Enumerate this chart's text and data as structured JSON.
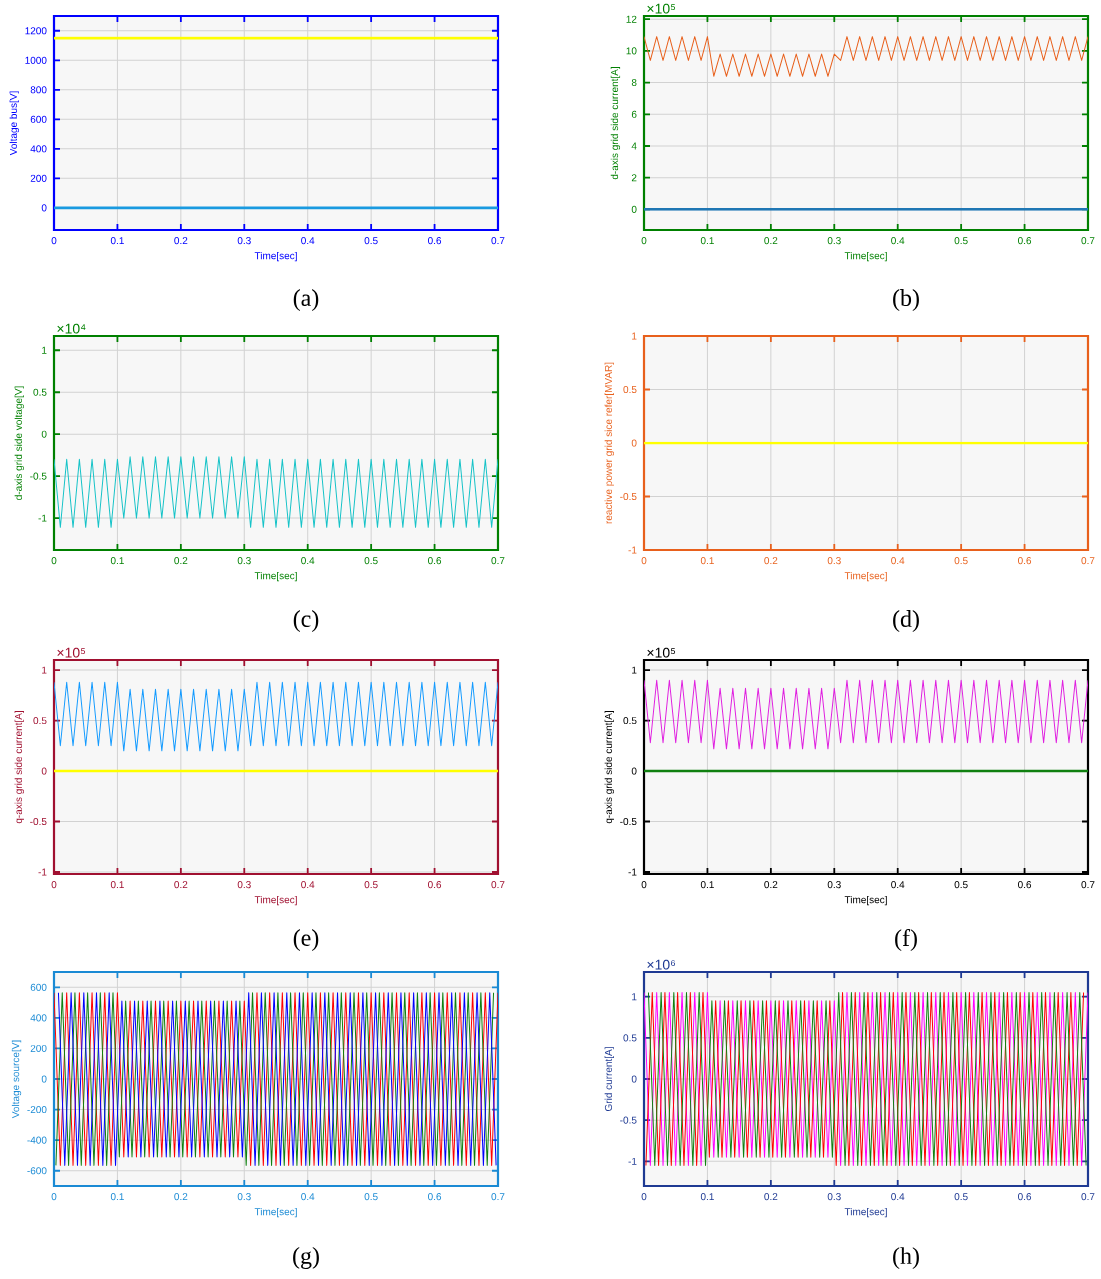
{
  "chart_data": [
    {
      "type": "line",
      "ylabel": "Voltage bus[V]",
      "xlabel": "Time[sec]",
      "xlim": [
        0,
        0.7
      ],
      "ylim": [
        -150,
        1300
      ],
      "xticks": [
        0,
        0.1,
        0.2,
        0.3,
        0.4,
        0.5,
        0.6,
        0.7
      ],
      "yticks": [
        0,
        200,
        400,
        600,
        800,
        1000,
        1200
      ],
      "grid": true,
      "annotations": [
        "(a)"
      ],
      "series": [
        {
          "color": "#ffff00",
          "x": [
            0,
            0.7
          ],
          "values": [
            1150,
            1150
          ]
        },
        {
          "color": "#1a9ae0",
          "x": [
            0,
            0.7
          ],
          "values": [
            0,
            0
          ]
        }
      ]
    },
    {
      "type": "line",
      "ylabel": "d-axis grid side current[A]",
      "xlabel": "Time[sec]",
      "xlim": [
        0,
        0.7
      ],
      "ylim": [
        -1.3,
        12.2
      ],
      "xticks": [
        0,
        0.1,
        0.2,
        0.3,
        0.4,
        0.5,
        0.6,
        0.7
      ],
      "yticks": [
        0,
        2,
        4,
        6,
        8,
        10,
        12
      ],
      "grid": true,
      "annotations": [
        "×10⁵",
        "(b)"
      ],
      "x": [
        0,
        0.01,
        0.02,
        0.03,
        0.04,
        0.05,
        0.06,
        0.07,
        0.08,
        0.09,
        0.1,
        0.11,
        0.12,
        0.13,
        0.14,
        0.15,
        0.16,
        0.17,
        0.18,
        0.19,
        0.2,
        0.21,
        0.22,
        0.23,
        0.24,
        0.25,
        0.26,
        0.27,
        0.28,
        0.29,
        0.3,
        0.31,
        0.32,
        0.33,
        0.34,
        0.35,
        0.36,
        0.37,
        0.38,
        0.39,
        0.4,
        0.41,
        0.42,
        0.43,
        0.44,
        0.45,
        0.46,
        0.47,
        0.48,
        0.49,
        0.5,
        0.51,
        0.52,
        0.53,
        0.54,
        0.55,
        0.56,
        0.57,
        0.58,
        0.59,
        0.6,
        0.61,
        0.62,
        0.63,
        0.64,
        0.65,
        0.66,
        0.67,
        0.68,
        0.69,
        0.7
      ],
      "series": [
        {
          "color": "#e8601c",
          "values": [
            10.9,
            9.4,
            10.9,
            9.4,
            10.9,
            9.4,
            10.9,
            9.4,
            10.9,
            9.4,
            10.9,
            8.4,
            9.8,
            8.4,
            9.8,
            8.4,
            9.8,
            8.4,
            9.8,
            8.4,
            9.8,
            8.4,
            9.8,
            8.4,
            9.8,
            8.4,
            9.8,
            8.4,
            9.8,
            8.4,
            9.8,
            9.4,
            10.9,
            9.4,
            10.9,
            9.4,
            10.9,
            9.4,
            10.9,
            9.4,
            10.9,
            9.4,
            10.9,
            9.4,
            10.9,
            9.4,
            10.9,
            9.4,
            10.9,
            9.4,
            10.9,
            9.4,
            10.9,
            9.4,
            10.9,
            9.4,
            10.9,
            9.4,
            10.9,
            9.4,
            10.9,
            9.4,
            10.9,
            9.4,
            10.9,
            9.4,
            10.9,
            9.4,
            10.9,
            9.4,
            10.9
          ]
        },
        {
          "color": "#1f77b4",
          "x": [
            0,
            0.7
          ],
          "values": [
            0,
            0
          ]
        }
      ]
    },
    {
      "type": "line",
      "ylabel": "d-axis grid side voltage[V]",
      "xlabel": "Time[sec]",
      "xlim": [
        0,
        0.7
      ],
      "ylim": [
        -1.38,
        1.17
      ],
      "xticks": [
        0,
        0.1,
        0.2,
        0.3,
        0.4,
        0.5,
        0.6,
        0.7
      ],
      "yticks": [
        -1,
        -0.5,
        0,
        0.5,
        1
      ],
      "grid": true,
      "annotations": [
        "×10⁴",
        "(c)"
      ],
      "x": [
        0,
        0.01,
        0.02,
        0.03,
        0.04,
        0.05,
        0.06,
        0.07,
        0.08,
        0.09,
        0.1,
        0.11,
        0.12,
        0.13,
        0.14,
        0.15,
        0.16,
        0.17,
        0.18,
        0.19,
        0.2,
        0.21,
        0.22,
        0.23,
        0.24,
        0.25,
        0.26,
        0.27,
        0.28,
        0.29,
        0.3,
        0.31,
        0.32,
        0.33,
        0.34,
        0.35,
        0.36,
        0.37,
        0.38,
        0.39,
        0.4,
        0.41,
        0.42,
        0.43,
        0.44,
        0.45,
        0.46,
        0.47,
        0.48,
        0.49,
        0.5,
        0.51,
        0.52,
        0.53,
        0.54,
        0.55,
        0.56,
        0.57,
        0.58,
        0.59,
        0.6,
        0.61,
        0.62,
        0.63,
        0.64,
        0.65,
        0.66,
        0.67,
        0.68,
        0.69,
        0.7
      ],
      "series": [
        {
          "color": "#17c3c8",
          "values": [
            -0.3,
            -1.11,
            -0.3,
            -1.11,
            -0.3,
            -1.11,
            -0.3,
            -1.11,
            -0.3,
            -1.11,
            -0.3,
            -1.0,
            -0.27,
            -1.0,
            -0.27,
            -1.0,
            -0.27,
            -1.0,
            -0.27,
            -1.0,
            -0.27,
            -1.0,
            -0.27,
            -1.0,
            -0.27,
            -1.0,
            -0.27,
            -1.0,
            -0.27,
            -1.0,
            -0.27,
            -1.11,
            -0.3,
            -1.11,
            -0.3,
            -1.11,
            -0.3,
            -1.11,
            -0.3,
            -1.11,
            -0.3,
            -1.11,
            -0.3,
            -1.11,
            -0.3,
            -1.11,
            -0.3,
            -1.11,
            -0.3,
            -1.11,
            -0.3,
            -1.11,
            -0.3,
            -1.11,
            -0.3,
            -1.11,
            -0.3,
            -1.11,
            -0.3,
            -1.11,
            -0.3,
            -1.11,
            -0.3,
            -1.11,
            -0.3,
            -1.11,
            -0.3,
            -1.11,
            -0.3,
            -1.11,
            -0.3
          ]
        }
      ]
    },
    {
      "type": "line",
      "ylabel": "reactive power grid sice refer[MVAR]",
      "xlabel": "Time[sec]",
      "xlim": [
        0,
        0.7
      ],
      "ylim": [
        -1,
        1
      ],
      "xticks": [
        0,
        0.1,
        0.2,
        0.3,
        0.4,
        0.5,
        0.6,
        0.7
      ],
      "yticks": [
        -1,
        -0.5,
        0,
        0.5,
        1
      ],
      "grid": true,
      "annotations": [
        "(d)"
      ],
      "series": [
        {
          "color": "#ffff00",
          "x": [
            0,
            0.7
          ],
          "values": [
            0,
            0
          ]
        }
      ]
    },
    {
      "type": "line",
      "ylabel": "q-axis grid side current[A]",
      "xlabel": "Time[sec]",
      "xlim": [
        0,
        0.7
      ],
      "ylim": [
        -1.02,
        1.1
      ],
      "xticks": [
        0,
        0.1,
        0.2,
        0.3,
        0.4,
        0.5,
        0.6,
        0.7
      ],
      "yticks": [
        -1,
        -0.5,
        0,
        0.5,
        1
      ],
      "grid": true,
      "annotations": [
        "×10⁵",
        "(e)"
      ],
      "x": [
        0,
        0.01,
        0.02,
        0.03,
        0.04,
        0.05,
        0.06,
        0.07,
        0.08,
        0.09,
        0.1,
        0.11,
        0.12,
        0.13,
        0.14,
        0.15,
        0.16,
        0.17,
        0.18,
        0.19,
        0.2,
        0.21,
        0.22,
        0.23,
        0.24,
        0.25,
        0.26,
        0.27,
        0.28,
        0.29,
        0.3,
        0.31,
        0.32,
        0.33,
        0.34,
        0.35,
        0.36,
        0.37,
        0.38,
        0.39,
        0.4,
        0.41,
        0.42,
        0.43,
        0.44,
        0.45,
        0.46,
        0.47,
        0.48,
        0.49,
        0.5,
        0.51,
        0.52,
        0.53,
        0.54,
        0.55,
        0.56,
        0.57,
        0.58,
        0.59,
        0.6,
        0.61,
        0.62,
        0.63,
        0.64,
        0.65,
        0.66,
        0.67,
        0.68,
        0.69,
        0.7
      ],
      "series": [
        {
          "color": "#149bff",
          "values": [
            0.88,
            0.25,
            0.88,
            0.25,
            0.88,
            0.25,
            0.88,
            0.25,
            0.88,
            0.25,
            0.88,
            0.2,
            0.81,
            0.2,
            0.81,
            0.2,
            0.81,
            0.2,
            0.81,
            0.2,
            0.81,
            0.2,
            0.81,
            0.2,
            0.81,
            0.2,
            0.81,
            0.2,
            0.81,
            0.2,
            0.81,
            0.25,
            0.88,
            0.25,
            0.88,
            0.25,
            0.88,
            0.25,
            0.88,
            0.25,
            0.88,
            0.25,
            0.88,
            0.25,
            0.88,
            0.25,
            0.88,
            0.25,
            0.88,
            0.25,
            0.88,
            0.25,
            0.88,
            0.25,
            0.88,
            0.25,
            0.88,
            0.25,
            0.88,
            0.25,
            0.88,
            0.25,
            0.88,
            0.25,
            0.88,
            0.25,
            0.88,
            0.25,
            0.88,
            0.25,
            0.88
          ]
        },
        {
          "color": "#ffff00",
          "x": [
            0,
            0.7
          ],
          "values": [
            0,
            0
          ]
        }
      ]
    },
    {
      "type": "line",
      "ylabel": "q-axis grid side current[A]",
      "xlabel": "Time[sec]",
      "xlim": [
        0,
        0.7
      ],
      "ylim": [
        -1.02,
        1.1
      ],
      "xticks": [
        0,
        0.1,
        0.2,
        0.3,
        0.4,
        0.5,
        0.6,
        0.7
      ],
      "yticks": [
        -1,
        -0.5,
        0,
        0.5,
        1
      ],
      "grid": true,
      "annotations": [
        "×10⁵",
        "(f)"
      ],
      "x": [
        0,
        0.01,
        0.02,
        0.03,
        0.04,
        0.05,
        0.06,
        0.07,
        0.08,
        0.09,
        0.1,
        0.11,
        0.12,
        0.13,
        0.14,
        0.15,
        0.16,
        0.17,
        0.18,
        0.19,
        0.2,
        0.21,
        0.22,
        0.23,
        0.24,
        0.25,
        0.26,
        0.27,
        0.28,
        0.29,
        0.3,
        0.31,
        0.32,
        0.33,
        0.34,
        0.35,
        0.36,
        0.37,
        0.38,
        0.39,
        0.4,
        0.41,
        0.42,
        0.43,
        0.44,
        0.45,
        0.46,
        0.47,
        0.48,
        0.49,
        0.5,
        0.51,
        0.52,
        0.53,
        0.54,
        0.55,
        0.56,
        0.57,
        0.58,
        0.59,
        0.6,
        0.61,
        0.62,
        0.63,
        0.64,
        0.65,
        0.66,
        0.67,
        0.68,
        0.69,
        0.7
      ],
      "series": [
        {
          "color": "#e020e0",
          "values": [
            0.9,
            0.28,
            0.9,
            0.28,
            0.9,
            0.28,
            0.9,
            0.28,
            0.9,
            0.28,
            0.9,
            0.22,
            0.82,
            0.22,
            0.82,
            0.22,
            0.82,
            0.22,
            0.82,
            0.22,
            0.82,
            0.22,
            0.82,
            0.22,
            0.82,
            0.22,
            0.82,
            0.22,
            0.82,
            0.22,
            0.82,
            0.28,
            0.9,
            0.28,
            0.9,
            0.28,
            0.9,
            0.28,
            0.9,
            0.28,
            0.9,
            0.28,
            0.9,
            0.28,
            0.9,
            0.28,
            0.9,
            0.28,
            0.9,
            0.28,
            0.9,
            0.28,
            0.9,
            0.28,
            0.9,
            0.28,
            0.9,
            0.28,
            0.9,
            0.28,
            0.9,
            0.28,
            0.9,
            0.28,
            0.9,
            0.28,
            0.9,
            0.28,
            0.9,
            0.28,
            0.9
          ]
        },
        {
          "color": "#108010",
          "x": [
            0,
            0.7
          ],
          "values": [
            0,
            0
          ]
        }
      ]
    },
    {
      "type": "line",
      "ylabel": "Voltage source[V]",
      "xlabel": "Time[sec]",
      "xlim": [
        0,
        0.7
      ],
      "ylim": [
        -700,
        700
      ],
      "xticks": [
        0,
        0.1,
        0.2,
        0.3,
        0.4,
        0.5,
        0.6,
        0.7
      ],
      "yticks": [
        -600,
        -400,
        -200,
        0,
        200,
        400,
        600
      ],
      "grid": true,
      "annotations": [
        "(g)"
      ],
      "x": [
        0,
        0.01,
        0.02,
        0.03,
        0.04,
        0.05,
        0.06,
        0.07,
        0.08,
        0.09,
        0.1,
        0.11,
        0.12,
        0.13,
        0.14,
        0.15,
        0.16,
        0.17,
        0.18,
        0.19,
        0.2,
        0.21,
        0.22,
        0.23,
        0.24,
        0.25,
        0.26,
        0.27,
        0.28,
        0.29,
        0.3,
        0.31,
        0.32,
        0.33,
        0.34,
        0.35,
        0.36,
        0.37,
        0.38,
        0.39,
        0.4,
        0.41,
        0.42,
        0.43,
        0.44,
        0.45,
        0.46,
        0.47,
        0.48,
        0.49,
        0.5,
        0.51,
        0.52,
        0.53,
        0.54,
        0.55,
        0.56,
        0.57,
        0.58,
        0.59,
        0.6,
        0.61,
        0.62,
        0.63,
        0.64,
        0.65,
        0.66,
        0.67,
        0.68,
        0.69,
        0.7
      ],
      "series": [
        {
          "color": "#ff0000",
          "values": [
            565,
            -565,
            565,
            -565,
            565,
            -565,
            565,
            -565,
            565,
            -565,
            565,
            -510,
            510,
            -510,
            510,
            -510,
            510,
            -510,
            510,
            -510,
            510,
            -510,
            510,
            -510,
            510,
            -510,
            510,
            -510,
            510,
            -510,
            510,
            -565,
            565,
            -565,
            565,
            -565,
            565,
            -565,
            565,
            -565,
            565,
            -565,
            565,
            -565,
            565,
            -565,
            565,
            -565,
            565,
            -565,
            565,
            -565,
            565,
            -565,
            565,
            -565,
            565,
            -565,
            565,
            -565,
            565,
            -565,
            565,
            -565,
            565,
            -565,
            565,
            -565,
            565,
            -565,
            565
          ]
        },
        {
          "color": "#108010",
          "x": [
            0.003,
            0.013,
            0.023,
            0.033,
            0.043,
            0.053,
            0.063,
            0.073,
            0.083,
            0.093,
            0.103,
            0.113,
            0.123,
            0.133,
            0.143,
            0.153,
            0.163,
            0.173,
            0.183,
            0.193,
            0.203,
            0.213,
            0.223,
            0.233,
            0.243,
            0.253,
            0.263,
            0.273,
            0.283,
            0.293,
            0.303,
            0.313,
            0.323,
            0.333,
            0.343,
            0.353,
            0.363,
            0.373,
            0.383,
            0.393,
            0.403,
            0.413,
            0.423,
            0.433,
            0.443,
            0.453,
            0.463,
            0.473,
            0.483,
            0.493,
            0.503,
            0.513,
            0.523,
            0.533,
            0.543,
            0.553,
            0.563,
            0.573,
            0.583,
            0.593,
            0.603,
            0.613,
            0.623,
            0.633,
            0.643,
            0.653,
            0.663,
            0.673,
            0.683,
            0.693
          ],
          "values": [
            -565,
            565,
            -565,
            565,
            -565,
            565,
            -565,
            565,
            -565,
            565,
            -510,
            510,
            -510,
            510,
            -510,
            510,
            -510,
            510,
            -510,
            510,
            -510,
            510,
            -510,
            510,
            -510,
            510,
            -510,
            510,
            -510,
            510,
            -565,
            565,
            -565,
            565,
            -565,
            565,
            -565,
            565,
            -565,
            565,
            -565,
            565,
            -565,
            565,
            -565,
            565,
            -565,
            565,
            -565,
            565,
            -565,
            565,
            -565,
            565,
            -565,
            565,
            -565,
            565,
            -565,
            565,
            -565,
            565,
            -565,
            565,
            -565,
            565,
            -565,
            565,
            -565,
            565
          ]
        },
        {
          "color": "#0000ff",
          "x": [
            0.007,
            0.017,
            0.027,
            0.037,
            0.047,
            0.057,
            0.067,
            0.077,
            0.087,
            0.097,
            0.107,
            0.117,
            0.127,
            0.137,
            0.147,
            0.157,
            0.167,
            0.177,
            0.187,
            0.197,
            0.207,
            0.217,
            0.227,
            0.237,
            0.247,
            0.257,
            0.267,
            0.277,
            0.287,
            0.297,
            0.307,
            0.317,
            0.327,
            0.337,
            0.347,
            0.357,
            0.367,
            0.377,
            0.387,
            0.397,
            0.407,
            0.417,
            0.427,
            0.437,
            0.447,
            0.457,
            0.467,
            0.477,
            0.487,
            0.497,
            0.507,
            0.517,
            0.527,
            0.537,
            0.547,
            0.557,
            0.567,
            0.577,
            0.587,
            0.597,
            0.607,
            0.617,
            0.627,
            0.637,
            0.647,
            0.657,
            0.667,
            0.677,
            0.687,
            0.697
          ],
          "values": [
            565,
            -565,
            565,
            -565,
            565,
            -565,
            565,
            -565,
            565,
            -565,
            510,
            -510,
            510,
            -510,
            510,
            -510,
            510,
            -510,
            510,
            -510,
            510,
            -510,
            510,
            -510,
            510,
            -510,
            510,
            -510,
            510,
            -510,
            565,
            -565,
            565,
            -565,
            565,
            -565,
            565,
            -565,
            565,
            -565,
            565,
            -565,
            565,
            -565,
            565,
            -565,
            565,
            -565,
            565,
            -565,
            565,
            -565,
            565,
            -565,
            565,
            -565,
            565,
            -565,
            565,
            -565,
            565,
            -565,
            565,
            -565,
            565,
            -565,
            565,
            -565,
            565,
            -565
          ]
        }
      ]
    },
    {
      "type": "line",
      "ylabel": "Grid current[A]",
      "xlabel": "Time[sec]",
      "xlim": [
        0,
        0.7
      ],
      "ylim": [
        -1.3,
        1.3
      ],
      "xticks": [
        0,
        0.1,
        0.2,
        0.3,
        0.4,
        0.5,
        0.6,
        0.7
      ],
      "yticks": [
        -1,
        -0.5,
        0,
        0.5,
        1
      ],
      "grid": true,
      "annotations": [
        "×10⁶",
        "(h)"
      ],
      "x": [
        0,
        0.01,
        0.02,
        0.03,
        0.04,
        0.05,
        0.06,
        0.07,
        0.08,
        0.09,
        0.1,
        0.11,
        0.12,
        0.13,
        0.14,
        0.15,
        0.16,
        0.17,
        0.18,
        0.19,
        0.2,
        0.21,
        0.22,
        0.23,
        0.24,
        0.25,
        0.26,
        0.27,
        0.28,
        0.29,
        0.3,
        0.31,
        0.32,
        0.33,
        0.34,
        0.35,
        0.36,
        0.37,
        0.38,
        0.39,
        0.4,
        0.41,
        0.42,
        0.43,
        0.44,
        0.45,
        0.46,
        0.47,
        0.48,
        0.49,
        0.5,
        0.51,
        0.52,
        0.53,
        0.54,
        0.55,
        0.56,
        0.57,
        0.58,
        0.59,
        0.6,
        0.61,
        0.62,
        0.63,
        0.64,
        0.65,
        0.66,
        0.67,
        0.68,
        0.69,
        0.7
      ],
      "series": [
        {
          "color": "#ff00ff",
          "values": [
            1.05,
            -1.05,
            1.05,
            -1.05,
            1.05,
            -1.05,
            1.05,
            -1.05,
            1.05,
            -1.05,
            1.05,
            -0.95,
            0.95,
            -0.95,
            0.95,
            -0.95,
            0.95,
            -0.95,
            0.95,
            -0.95,
            0.95,
            -0.95,
            0.95,
            -0.95,
            0.95,
            -0.95,
            0.95,
            -0.95,
            0.95,
            -0.95,
            0.95,
            -1.05,
            1.05,
            -1.05,
            1.05,
            -1.05,
            1.05,
            -1.05,
            1.05,
            -1.05,
            1.05,
            -1.05,
            1.05,
            -1.05,
            1.05,
            -1.05,
            1.05,
            -1.05,
            1.05,
            -1.05,
            1.05,
            -1.05,
            1.05,
            -1.05,
            1.05,
            -1.05,
            1.05,
            -1.05,
            1.05,
            -1.05,
            1.05,
            -1.05,
            1.05,
            -1.05,
            1.05,
            -1.05,
            1.05,
            -1.05,
            1.05,
            -1.05,
            1.05
          ]
        },
        {
          "color": "#ff0000",
          "x": [
            0.003,
            0.013,
            0.023,
            0.033,
            0.043,
            0.053,
            0.063,
            0.073,
            0.083,
            0.093,
            0.103,
            0.113,
            0.123,
            0.133,
            0.143,
            0.153,
            0.163,
            0.173,
            0.183,
            0.193,
            0.203,
            0.213,
            0.223,
            0.233,
            0.243,
            0.253,
            0.263,
            0.273,
            0.283,
            0.293,
            0.303,
            0.313,
            0.323,
            0.333,
            0.343,
            0.353,
            0.363,
            0.373,
            0.383,
            0.393,
            0.403,
            0.413,
            0.423,
            0.433,
            0.443,
            0.453,
            0.463,
            0.473,
            0.483,
            0.493,
            0.503,
            0.513,
            0.523,
            0.533,
            0.543,
            0.553,
            0.563,
            0.573,
            0.583,
            0.593,
            0.603,
            0.613,
            0.623,
            0.633,
            0.643,
            0.653,
            0.663,
            0.673,
            0.683,
            0.693
          ],
          "values": [
            -1.05,
            1.05,
            -1.05,
            1.05,
            -1.05,
            1.05,
            -1.05,
            1.05,
            -1.05,
            1.05,
            -0.95,
            0.95,
            -0.95,
            0.95,
            -0.95,
            0.95,
            -0.95,
            0.95,
            -0.95,
            0.95,
            -0.95,
            0.95,
            -0.95,
            0.95,
            -0.95,
            0.95,
            -0.95,
            0.95,
            -0.95,
            0.95,
            -1.05,
            1.05,
            -1.05,
            1.05,
            -1.05,
            1.05,
            -1.05,
            1.05,
            -1.05,
            1.05,
            -1.05,
            1.05,
            -1.05,
            1.05,
            -1.05,
            1.05,
            -1.05,
            1.05,
            -1.05,
            1.05,
            -1.05,
            1.05,
            -1.05,
            1.05,
            -1.05,
            1.05,
            -1.05,
            1.05,
            -1.05,
            1.05,
            -1.05,
            1.05,
            -1.05,
            1.05,
            -1.05,
            1.05,
            -1.05,
            1.05,
            -1.05,
            1.05
          ]
        },
        {
          "color": "#108010",
          "x": [
            0.007,
            0.017,
            0.027,
            0.037,
            0.047,
            0.057,
            0.067,
            0.077,
            0.087,
            0.097,
            0.107,
            0.117,
            0.127,
            0.137,
            0.147,
            0.157,
            0.167,
            0.177,
            0.187,
            0.197,
            0.207,
            0.217,
            0.227,
            0.237,
            0.247,
            0.257,
            0.267,
            0.277,
            0.287,
            0.297,
            0.307,
            0.317,
            0.327,
            0.337,
            0.347,
            0.357,
            0.367,
            0.377,
            0.387,
            0.397,
            0.407,
            0.417,
            0.427,
            0.437,
            0.447,
            0.457,
            0.467,
            0.477,
            0.487,
            0.497,
            0.507,
            0.517,
            0.527,
            0.537,
            0.547,
            0.557,
            0.567,
            0.577,
            0.587,
            0.597,
            0.607,
            0.617,
            0.627,
            0.637,
            0.647,
            0.657,
            0.667,
            0.677,
            0.687,
            0.697
          ],
          "values": [
            1.05,
            -1.05,
            1.05,
            -1.05,
            1.05,
            -1.05,
            1.05,
            -1.05,
            1.05,
            -1.05,
            0.95,
            -0.95,
            0.95,
            -0.95,
            0.95,
            -0.95,
            0.95,
            -0.95,
            0.95,
            -0.95,
            0.95,
            -0.95,
            0.95,
            -0.95,
            0.95,
            -0.95,
            0.95,
            -0.95,
            0.95,
            -0.95,
            1.05,
            -1.05,
            1.05,
            -1.05,
            1.05,
            -1.05,
            1.05,
            -1.05,
            1.05,
            -1.05,
            1.05,
            -1.05,
            1.05,
            -1.05,
            1.05,
            -1.05,
            1.05,
            -1.05,
            1.05,
            -1.05,
            1.05,
            -1.05,
            1.05,
            -1.05,
            1.05,
            -1.05,
            1.05,
            -1.05,
            1.05,
            -1.05,
            1.05,
            -1.05,
            1.05,
            -1.05,
            1.05,
            -1.05,
            1.05,
            -1.05,
            1.05,
            -1.05
          ]
        }
      ]
    }
  ]
}
